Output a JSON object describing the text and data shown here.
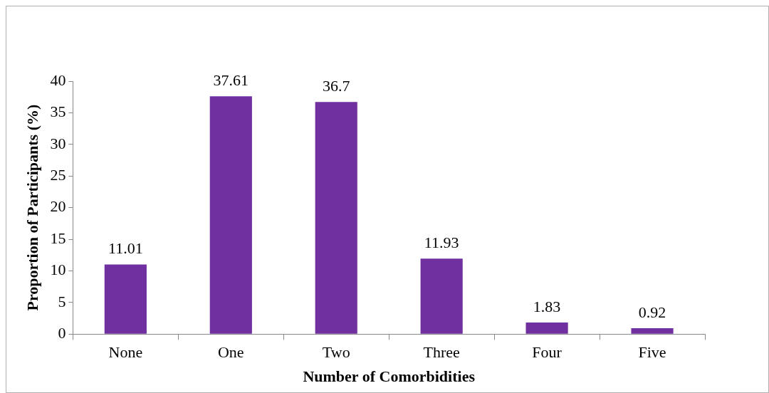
{
  "chart_data": {
    "type": "bar",
    "xlabel": "Number of Comorbidities",
    "ylabel": "Proportion of Participants (%)",
    "categories": [
      "None",
      "One",
      "Two",
      "Three",
      "Four",
      "Five"
    ],
    "values": [
      11.01,
      37.61,
      36.7,
      11.93,
      1.83,
      0.92
    ],
    "color": "#7030a0",
    "ylim": [
      0,
      40
    ],
    "yticks": [
      0,
      5,
      10,
      15,
      20,
      25,
      30,
      35,
      40
    ],
    "grid": false,
    "legend": false,
    "data_labels": true
  }
}
